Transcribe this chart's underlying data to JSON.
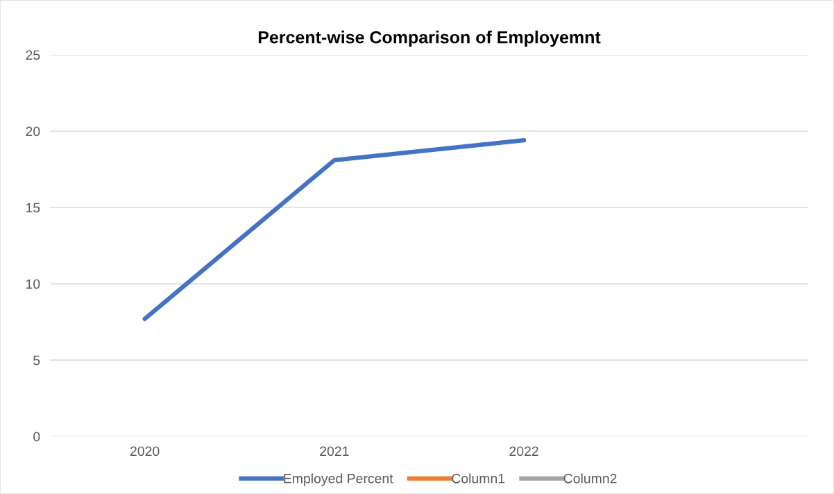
{
  "chart_data": {
    "type": "line",
    "title": "Percent-wise Comparison of Employemnt",
    "categories": [
      "2020",
      "2021",
      "2022",
      null
    ],
    "series": [
      {
        "name": "Employed Percent",
        "color": "#4472c4",
        "values": [
          7.7,
          18.1,
          19.4,
          null
        ]
      },
      {
        "name": "Column1",
        "color": "#ed7d31",
        "values": [
          null,
          null,
          null,
          null
        ]
      },
      {
        "name": "Column2",
        "color": "#a5a5a5",
        "values": [
          null,
          null,
          null,
          null
        ]
      }
    ],
    "ylim": [
      0,
      25
    ],
    "yticks": [
      0,
      5,
      10,
      15,
      20,
      25
    ],
    "grid": "y",
    "legend": "bottom",
    "marker": "none",
    "line_style": "solid"
  }
}
